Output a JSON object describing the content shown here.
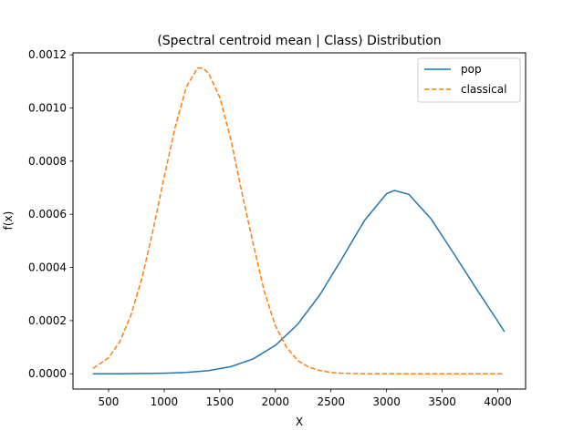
{
  "chart_data": {
    "type": "line",
    "title": "(Spectral centroid mean | Class) Distribution",
    "xlabel": "X",
    "ylabel": "f(x)",
    "xlim": [
      180,
      4250
    ],
    "ylim": [
      -5.75e-05,
      0.0012075
    ],
    "xticks": [
      500,
      1000,
      1500,
      2000,
      2500,
      3000,
      3500,
      4000
    ],
    "xtick_labels": [
      "500",
      "1000",
      "1500",
      "2000",
      "2500",
      "3000",
      "3500",
      "4000"
    ],
    "yticks": [
      0.0,
      0.0002,
      0.0004,
      0.0006,
      0.0008,
      0.001,
      0.0012
    ],
    "ytick_labels": [
      "0.0000",
      "0.0002",
      "0.0004",
      "0.0006",
      "0.0008",
      "0.0010",
      "0.0012"
    ],
    "grid": false,
    "legend_position": "top-right",
    "series": [
      {
        "name": "pop",
        "color": "#1f77b4",
        "style": "solid",
        "x": [
          360,
          600,
          800,
          1000,
          1200,
          1400,
          1600,
          1800,
          2000,
          2200,
          2400,
          2600,
          2800,
          3000,
          3070,
          3200,
          3400,
          3600,
          3800,
          4000,
          4060
        ],
        "y": [
          0.0,
          0.0,
          1e-06,
          2e-06,
          5e-06,
          1.2e-05,
          2.7e-05,
          5.6e-05,
          0.000107,
          0.000186,
          0.000297,
          0.000434,
          0.000576,
          0.000678,
          0.00069,
          0.000675,
          0.000583,
          0.000455,
          0.000324,
          0.000198,
          0.000158
        ]
      },
      {
        "name": "classical",
        "color": "#ff7f0e",
        "style": "dashed",
        "x": [
          360,
          500,
          600,
          700,
          800,
          900,
          1000,
          1100,
          1200,
          1300,
          1350,
          1400,
          1500,
          1600,
          1700,
          1800,
          1900,
          2000,
          2100,
          2200,
          2300,
          2400,
          2500,
          2600,
          2800,
          3000,
          3500,
          4060
        ],
        "y": [
          2e-05,
          6e-05,
          0.00012,
          0.00022,
          0.00036,
          0.00054,
          0.00074,
          0.00093,
          0.00108,
          0.00115,
          0.00115,
          0.00113,
          0.00104,
          0.00088,
          0.00068,
          0.00049,
          0.00031,
          0.00018,
          0.0001,
          5e-05,
          2.5e-05,
          1.2e-05,
          5e-06,
          2e-06,
          0.0,
          0.0,
          0.0,
          0.0
        ]
      }
    ]
  }
}
